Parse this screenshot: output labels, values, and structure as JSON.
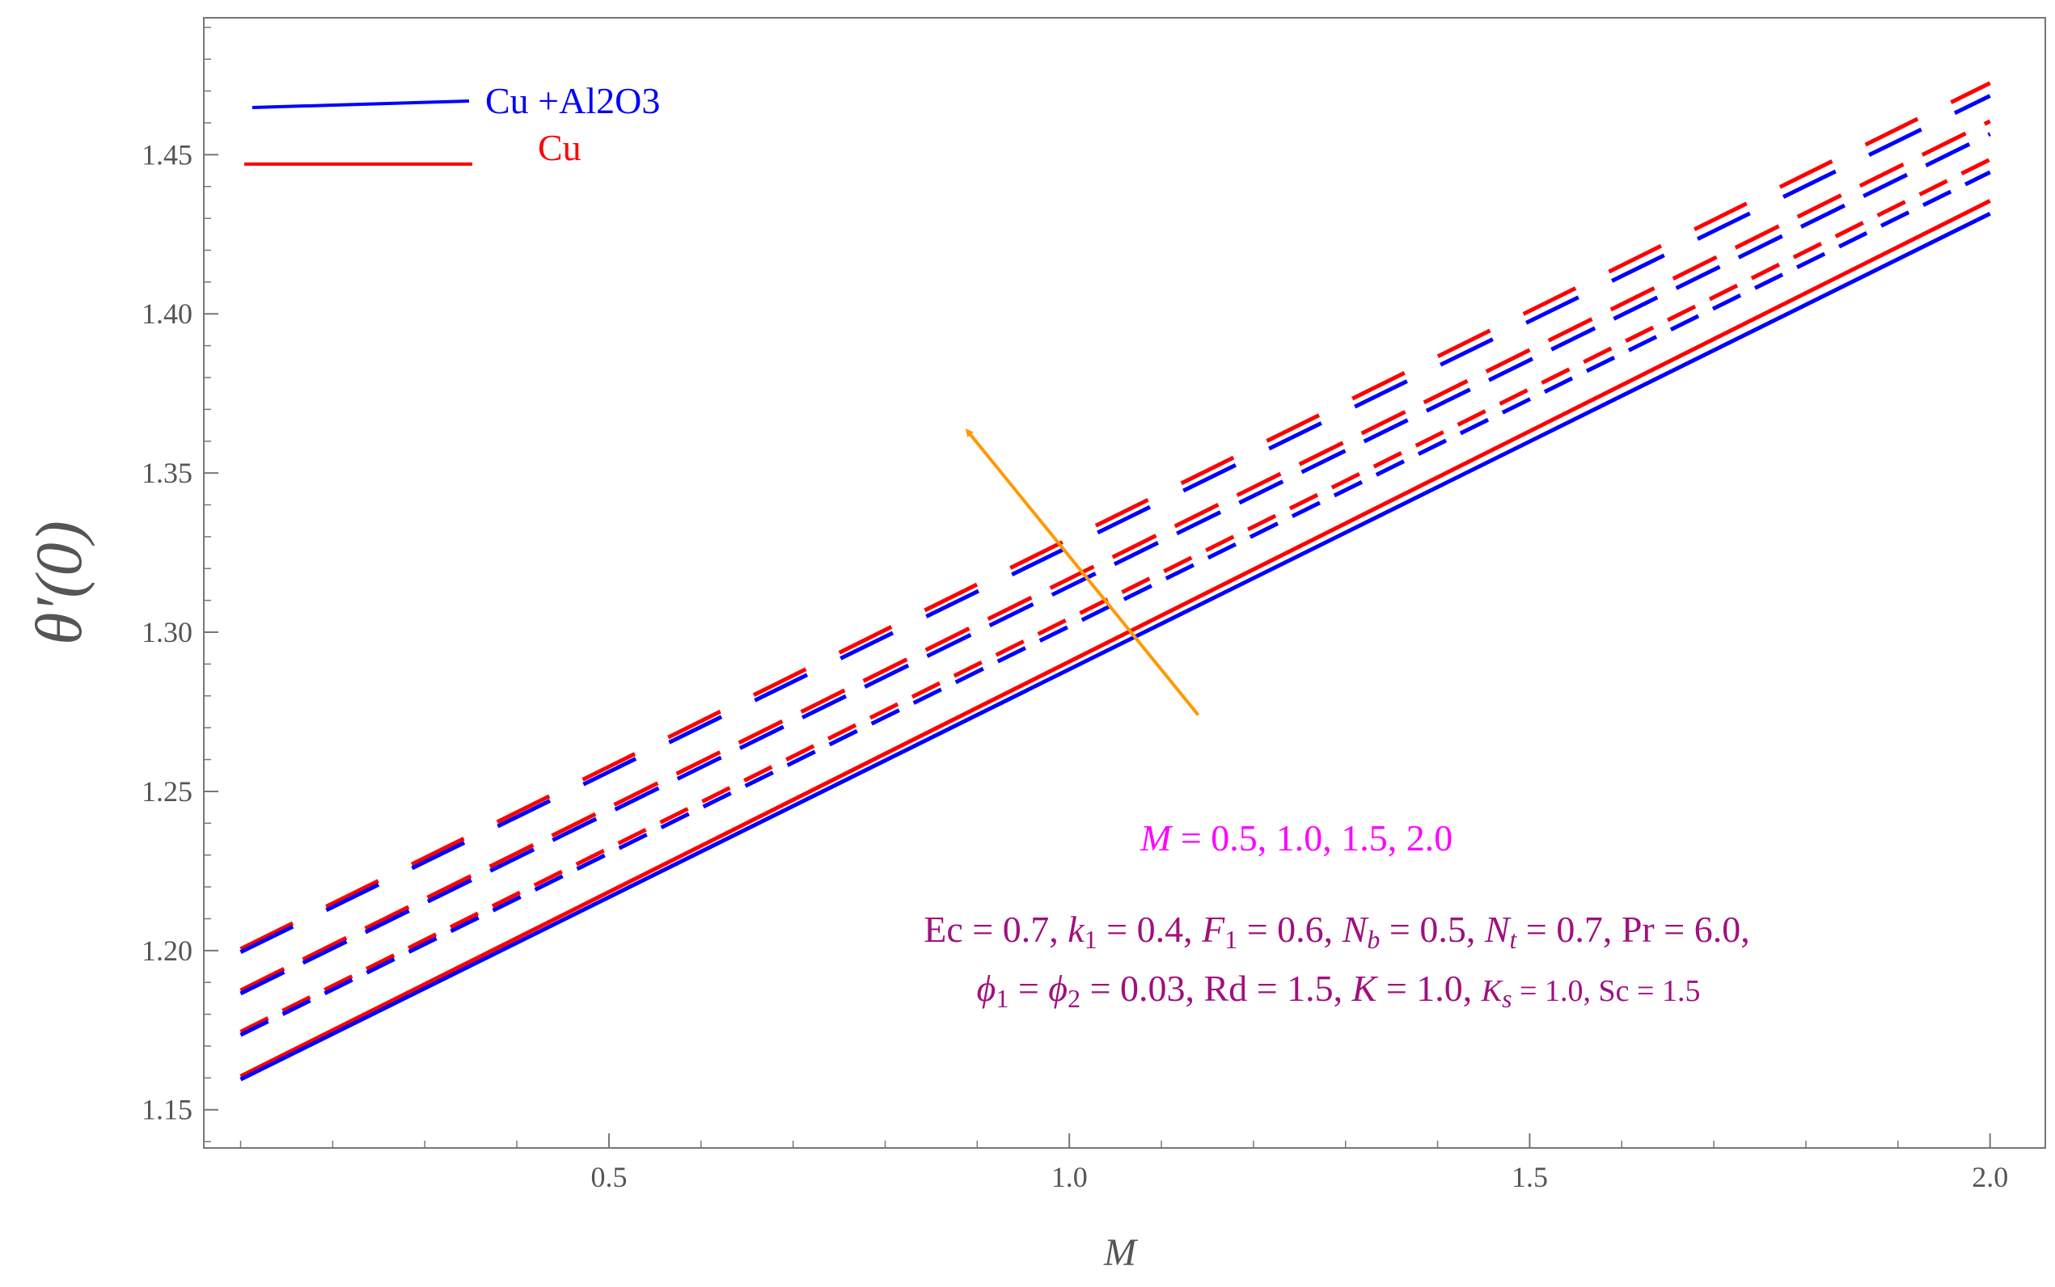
{
  "chart_data": {
    "type": "line",
    "title": "",
    "xlabel": "M",
    "ylabel": "θ′(0)",
    "xlim": [
      0.06,
      2.06
    ],
    "ylim": [
      1.138,
      1.493
    ],
    "xticks": [
      0.5,
      1.0,
      1.5,
      2.0
    ],
    "xtick_labels": [
      "0.5",
      "1.0",
      "1.5",
      "2.0"
    ],
    "yticks": [
      1.15,
      1.2,
      1.25,
      1.3,
      1.35,
      1.4,
      1.45
    ],
    "ytick_labels": [
      "1.15",
      "1.20",
      "1.25",
      "1.30",
      "1.35",
      "1.40",
      "1.45"
    ],
    "grid": false,
    "legend_position": "top-left",
    "legend": [
      {
        "name": "Cu +Al2O3",
        "color": "#0000ff"
      },
      {
        "name": "Cu",
        "color": "#ff0000"
      }
    ],
    "series": [
      {
        "name": "Cu",
        "parameter": "M = 0.5",
        "style": "solid",
        "color": "#ff0000",
        "x": [
          0.1,
          2.0
        ],
        "y": [
          1.1605,
          1.4355
        ]
      },
      {
        "name": "Cu +Al2O3",
        "parameter": "M = 0.5",
        "style": "solid",
        "color": "#0000ff",
        "x": [
          0.1,
          2.0
        ],
        "y": [
          1.1595,
          1.4315
        ]
      },
      {
        "name": "Cu",
        "parameter": "M = 1.0",
        "style": "dotted",
        "color": "#ff0000",
        "x": [
          0.1,
          2.0
        ],
        "y": [
          1.1745,
          1.4485
        ]
      },
      {
        "name": "Cu +Al2O3",
        "parameter": "M = 1.0",
        "style": "dotted",
        "color": "#0000ff",
        "x": [
          0.1,
          2.0
        ],
        "y": [
          1.1735,
          1.4445
        ]
      },
      {
        "name": "Cu",
        "parameter": "M = 1.5",
        "style": "dashed",
        "color": "#ff0000",
        "x": [
          0.1,
          2.0
        ],
        "y": [
          1.1875,
          1.4605
        ]
      },
      {
        "name": "Cu +Al2O3",
        "parameter": "M = 1.5",
        "style": "dashed",
        "color": "#0000ff",
        "x": [
          0.1,
          2.0
        ],
        "y": [
          1.1865,
          1.4565
        ]
      },
      {
        "name": "Cu",
        "parameter": "M = 2.0",
        "style": "longdash",
        "color": "#ff0000",
        "x": [
          0.1,
          2.0
        ],
        "y": [
          1.2005,
          1.4725
        ]
      },
      {
        "name": "Cu +Al2O3",
        "parameter": "M = 2.0",
        "style": "longdash",
        "color": "#0000ff",
        "x": [
          0.1,
          2.0
        ],
        "y": [
          1.1995,
          1.4685
        ]
      }
    ],
    "arrow": {
      "color": "#ff9900",
      "from": {
        "x": 1.14,
        "y": 1.274
      },
      "to": {
        "x": 0.89,
        "y": 1.363
      }
    },
    "annotations": {
      "m_values": {
        "color": "#ff00ff",
        "symbol": "M",
        "text": " = 0.5, 1.0, 1.5, 2.0"
      },
      "params_line1": {
        "color": "#a0107f",
        "parts": [
          {
            "t": "Ec = 0.7, "
          },
          {
            "t": "k",
            "it": true
          },
          {
            "t": "1",
            "sub": true
          },
          {
            "t": " = 0.4, "
          },
          {
            "t": "F",
            "it": true
          },
          {
            "t": "1",
            "sub": true
          },
          {
            "t": " = 0.6, "
          },
          {
            "t": "N",
            "it": true
          },
          {
            "t": "b",
            "sub": true,
            "it": true
          },
          {
            "t": " = 0.5, "
          },
          {
            "t": "N",
            "it": true
          },
          {
            "t": "t",
            "sub": true,
            "it": true
          },
          {
            "t": " = 0.7, Pr = 6.0,"
          }
        ]
      },
      "params_line2": {
        "color": "#a0107f",
        "parts": [
          {
            "t": "ϕ",
            "it": true
          },
          {
            "t": "1",
            "sub": true
          },
          {
            "t": " = "
          },
          {
            "t": "ϕ",
            "it": true
          },
          {
            "t": "2",
            "sub": true
          },
          {
            "t": " = 0.03, Rd = 1.5, "
          },
          {
            "t": "K",
            "it": true
          },
          {
            "t": " = 1.0, "
          },
          {
            "t": "K",
            "it": true,
            "small": true
          },
          {
            "t": "s",
            "sub": true,
            "it": true
          },
          {
            "t": " = 1.0, Sc = 1.5",
            "small": true
          }
        ]
      }
    }
  }
}
